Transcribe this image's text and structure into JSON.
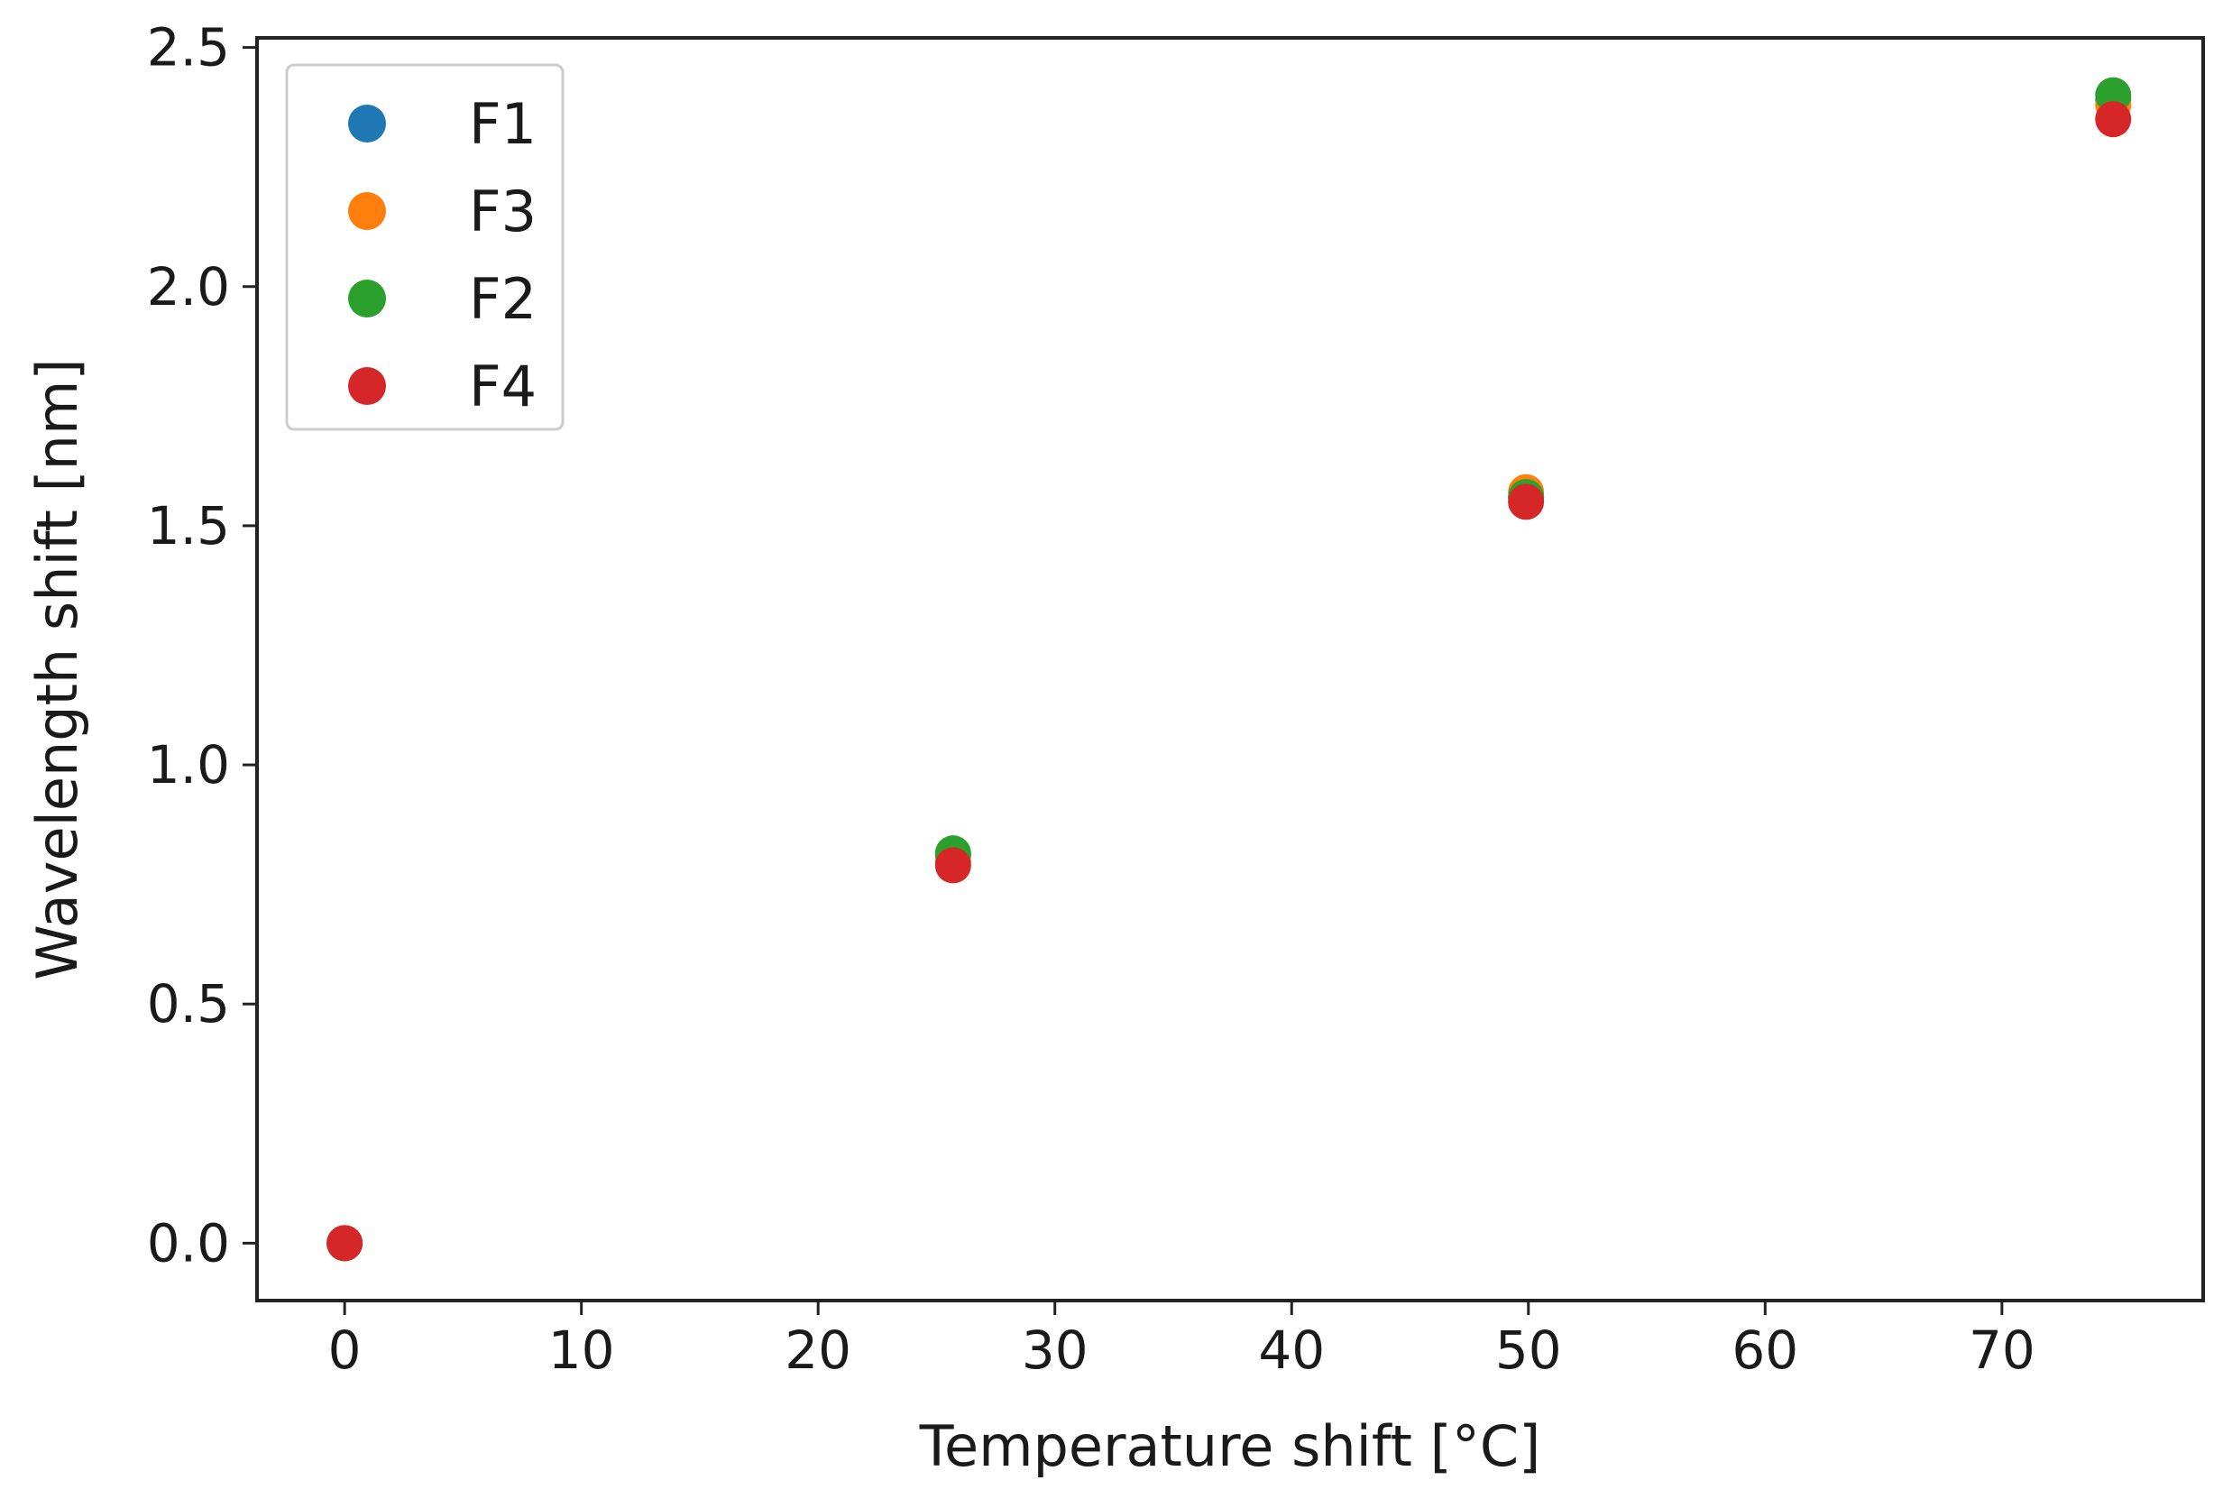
{
  "chart_data": {
    "type": "scatter",
    "title": "",
    "xlabel": "Temperature shift [°C]",
    "ylabel": "Wavelength shift [nm]",
    "xlim": [
      -3.7,
      78.5
    ],
    "ylim": [
      -0.12,
      2.52
    ],
    "xticks": [
      0,
      10,
      20,
      30,
      40,
      50,
      60,
      70
    ],
    "yticks": [
      0.0,
      0.5,
      1.0,
      1.5,
      2.0,
      2.5
    ],
    "xtick_labels": [
      "0",
      "10",
      "20",
      "30",
      "40",
      "50",
      "60",
      "70"
    ],
    "ytick_labels": [
      "0.0",
      "0.5",
      "1.0",
      "1.5",
      "2.0",
      "2.5"
    ],
    "grid": false,
    "legend_position": "top-left",
    "series": [
      {
        "name": "F1",
        "color": "#1f77b4",
        "x": [
          0,
          25.7,
          49.9,
          74.7
        ],
        "y": [
          0.0,
          0.81,
          1.56,
          2.39
        ]
      },
      {
        "name": "F3",
        "color": "#ff7f0e",
        "x": [
          0,
          25.7,
          49.9,
          74.7
        ],
        "y": [
          0.0,
          0.8,
          1.57,
          2.38
        ]
      },
      {
        "name": "F2",
        "color": "#2ca02c",
        "x": [
          0,
          25.7,
          49.9,
          74.7
        ],
        "y": [
          0.0,
          0.815,
          1.56,
          2.4
        ]
      },
      {
        "name": "F4",
        "color": "#d62728",
        "x": [
          0,
          25.7,
          49.9,
          74.7
        ],
        "y": [
          0.0,
          0.79,
          1.55,
          2.35
        ]
      }
    ]
  }
}
